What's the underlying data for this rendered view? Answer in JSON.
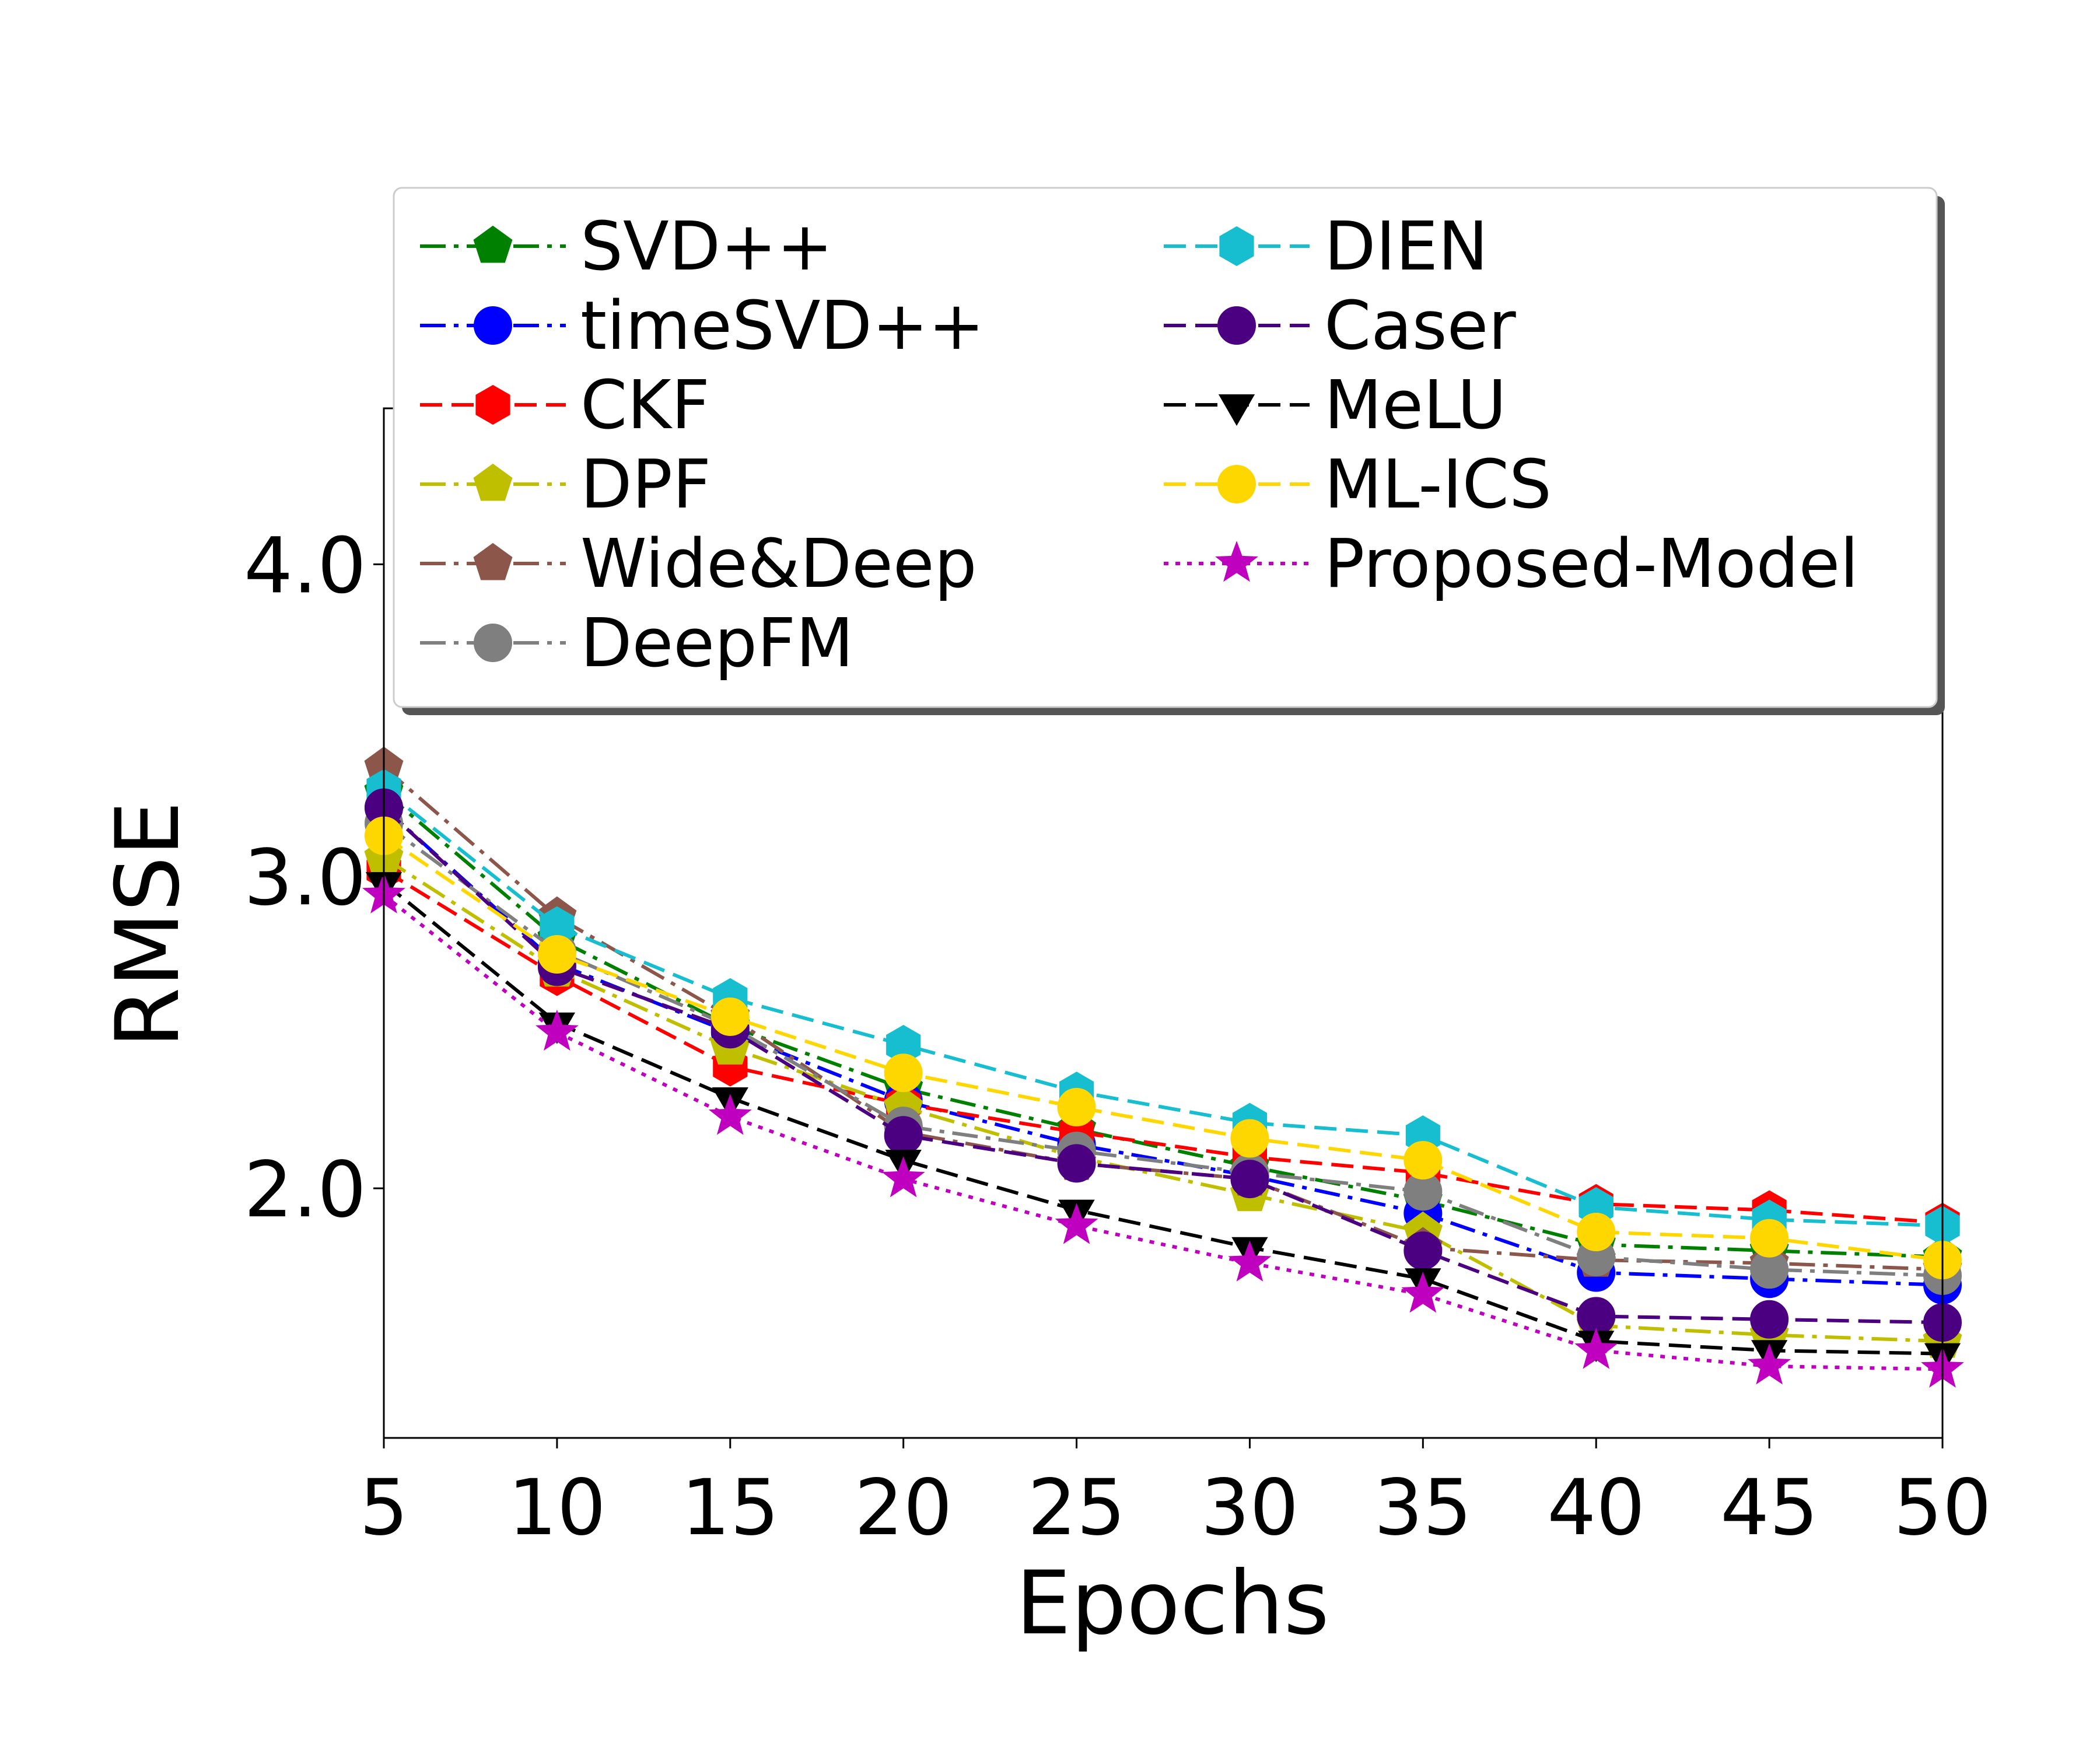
{
  "chart_data": {
    "type": "line",
    "title": "",
    "xlabel": "Epochs",
    "ylabel": "RMSE",
    "x": [
      5,
      10,
      15,
      20,
      25,
      30,
      35,
      40,
      45,
      50
    ],
    "xlim": [
      5,
      50
    ],
    "ylim": [
      1.2,
      4.5
    ],
    "xticks": [
      "5",
      "10",
      "15",
      "20",
      "25",
      "30",
      "35",
      "40",
      "45",
      "50"
    ],
    "yticks": [
      {
        "value": 2.0,
        "label": "2.0"
      },
      {
        "value": 3.0,
        "label": "3.0"
      },
      {
        "value": 4.0,
        "label": "4.0"
      }
    ],
    "grid": false,
    "legend_position": "top, inside axes, 2 columns",
    "series": [
      {
        "name": "SVD++",
        "color": "#008000",
        "dash": "dashdot",
        "marker": "pentagon",
        "values": [
          3.27,
          2.8,
          2.52,
          2.32,
          2.19,
          2.07,
          1.96,
          1.82,
          1.8,
          1.78
        ]
      },
      {
        "name": "timeSVD++",
        "color": "#0000ff",
        "dash": "dashdot",
        "marker": "circle",
        "values": [
          3.22,
          2.72,
          2.5,
          2.28,
          2.14,
          2.04,
          1.92,
          1.73,
          1.71,
          1.69
        ]
      },
      {
        "name": "CKF",
        "color": "#ff0000",
        "dash": "dashed",
        "marker": "hexagon",
        "values": [
          3.02,
          2.68,
          2.39,
          2.27,
          2.18,
          2.1,
          2.05,
          1.95,
          1.93,
          1.89
        ]
      },
      {
        "name": "DPF",
        "color": "#bfbf00",
        "dash": "dashdot",
        "marker": "pentagon",
        "values": [
          3.06,
          2.7,
          2.45,
          2.26,
          2.1,
          1.98,
          1.86,
          1.56,
          1.53,
          1.51
        ]
      },
      {
        "name": "Wide&Deep",
        "color": "#8c564b",
        "dash": "dashdot",
        "marker": "pentagon",
        "values": [
          3.35,
          2.87,
          2.55,
          2.18,
          2.08,
          2.03,
          1.81,
          1.77,
          1.76,
          1.74
        ]
      },
      {
        "name": "DeepFM",
        "color": "#7f7f7f",
        "dash": "dashdot",
        "marker": "circle",
        "values": [
          3.17,
          2.76,
          2.52,
          2.2,
          2.12,
          2.05,
          1.99,
          1.78,
          1.74,
          1.72
        ]
      },
      {
        "name": "DIEN",
        "color": "#17becf",
        "dash": "dashed",
        "marker": "hexagon",
        "values": [
          3.28,
          2.84,
          2.61,
          2.46,
          2.31,
          2.21,
          2.17,
          1.94,
          1.9,
          1.88
        ]
      },
      {
        "name": "Caser",
        "color": "#4b0082",
        "dash": "dashed",
        "marker": "circle",
        "values": [
          3.22,
          2.71,
          2.51,
          2.17,
          2.08,
          2.03,
          1.8,
          1.59,
          1.58,
          1.57
        ]
      },
      {
        "name": "MeLU",
        "color": "#000000",
        "dash": "dashed",
        "marker": "triangle-down",
        "values": [
          2.98,
          2.53,
          2.29,
          2.09,
          1.93,
          1.81,
          1.71,
          1.51,
          1.48,
          1.47
        ]
      },
      {
        "name": "ML-ICS",
        "color": "#ffd700",
        "dash": "dashed",
        "marker": "circle",
        "values": [
          3.13,
          2.75,
          2.55,
          2.37,
          2.26,
          2.16,
          2.09,
          1.86,
          1.84,
          1.77
        ]
      },
      {
        "name": "Proposed-Model",
        "color": "#bf00bf",
        "dash": "dotted",
        "marker": "star",
        "values": [
          2.94,
          2.5,
          2.23,
          2.03,
          1.88,
          1.76,
          1.66,
          1.48,
          1.43,
          1.42
        ]
      }
    ]
  }
}
